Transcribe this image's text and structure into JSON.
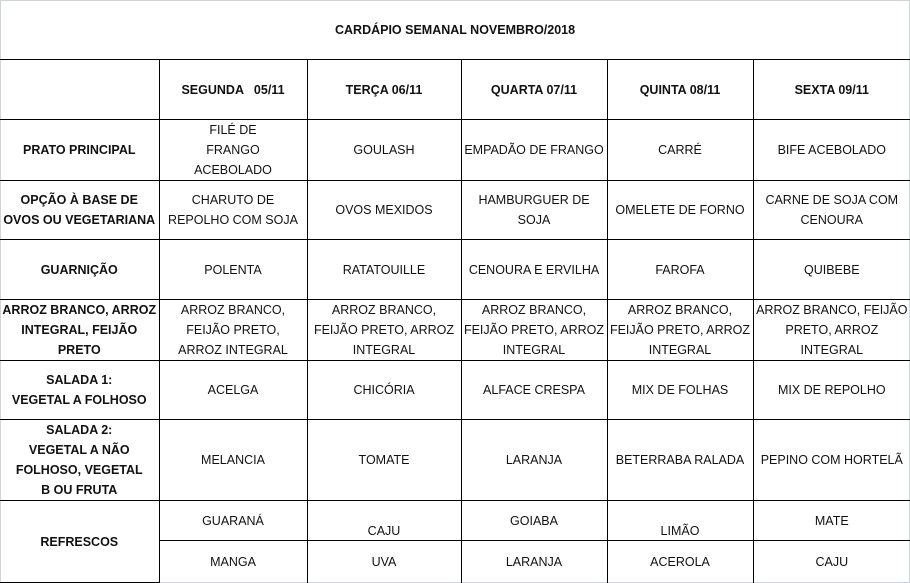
{
  "title": "CARDÁPIO SEMANAL NOVEMBRO/2018",
  "days": [
    "SEGUNDA   05/11",
    "TERÇA 06/11",
    "QUARTA 07/11",
    "QUINTA 08/11",
    "SEXTA 09/11"
  ],
  "rows": [
    {
      "label": "PRATO PRINCIPAL",
      "cells": [
        "FILÉ DE FRANGO ACEBOLADO",
        "GOULASH",
        "EMPADÃO DE FRANGO",
        "CARRÉ",
        "BIFE ACEBOLADO"
      ]
    },
    {
      "label": "OPÇÃO À BASE DE OVOS OU VEGETARIANA",
      "cells": [
        "CHARUTO DE REPOLHO COM SOJA",
        "OVOS MEXIDOS",
        "HAMBURGUER DE SOJA",
        "OMELETE DE FORNO",
        "CARNE DE SOJA COM CENOURA"
      ]
    },
    {
      "label": "GUARNIÇÃO",
      "cells": [
        "POLENTA",
        "RATATOUILLE",
        "CENOURA E ERVILHA",
        "FAROFA",
        "QUIBEBE"
      ]
    },
    {
      "label": "ARROZ BRANCO, ARROZ INTEGRAL, FEIJÃO PRETO",
      "cells": [
        "ARROZ BRANCO, FEIJÃO PRETO, ARROZ INTEGRAL",
        "ARROZ BRANCO, FEIJÃO PRETO, ARROZ INTEGRAL",
        "ARROZ BRANCO, FEIJÃO PRETO, ARROZ INTEGRAL",
        "ARROZ BRANCO, FEIJÃO PRETO, ARROZ INTEGRAL",
        "ARROZ BRANCO, FEIJÃO PRETO, ARROZ INTEGRAL"
      ]
    },
    {
      "label_line1": "SALADA 1:",
      "label_line2": "VEGETAL A FOLHOSO",
      "cells": [
        "ACELGA",
        "CHICÓRIA",
        "ALFACE CRESPA",
        "MIX DE FOLHAS",
        "MIX DE REPOLHO"
      ]
    },
    {
      "label_line1": "SALADA 2:",
      "label_line2": "VEGETAL A NÃO FOLHOSO, VEGETAL B OU FRUTA",
      "cells": [
        "MELANCIA",
        "TOMATE",
        "LARANJA",
        "BETERRABA RALADA",
        "PEPINO COM HORTELÃ"
      ]
    }
  ],
  "refrescos": {
    "label": "REFRESCOS",
    "row1": [
      "GUARANÁ",
      "CAJU",
      "GOIABA",
      "LIMÃO",
      "MATE"
    ],
    "row2": [
      "MANGA",
      "UVA",
      "LARANJA",
      "ACEROLA",
      "CAJU"
    ]
  }
}
